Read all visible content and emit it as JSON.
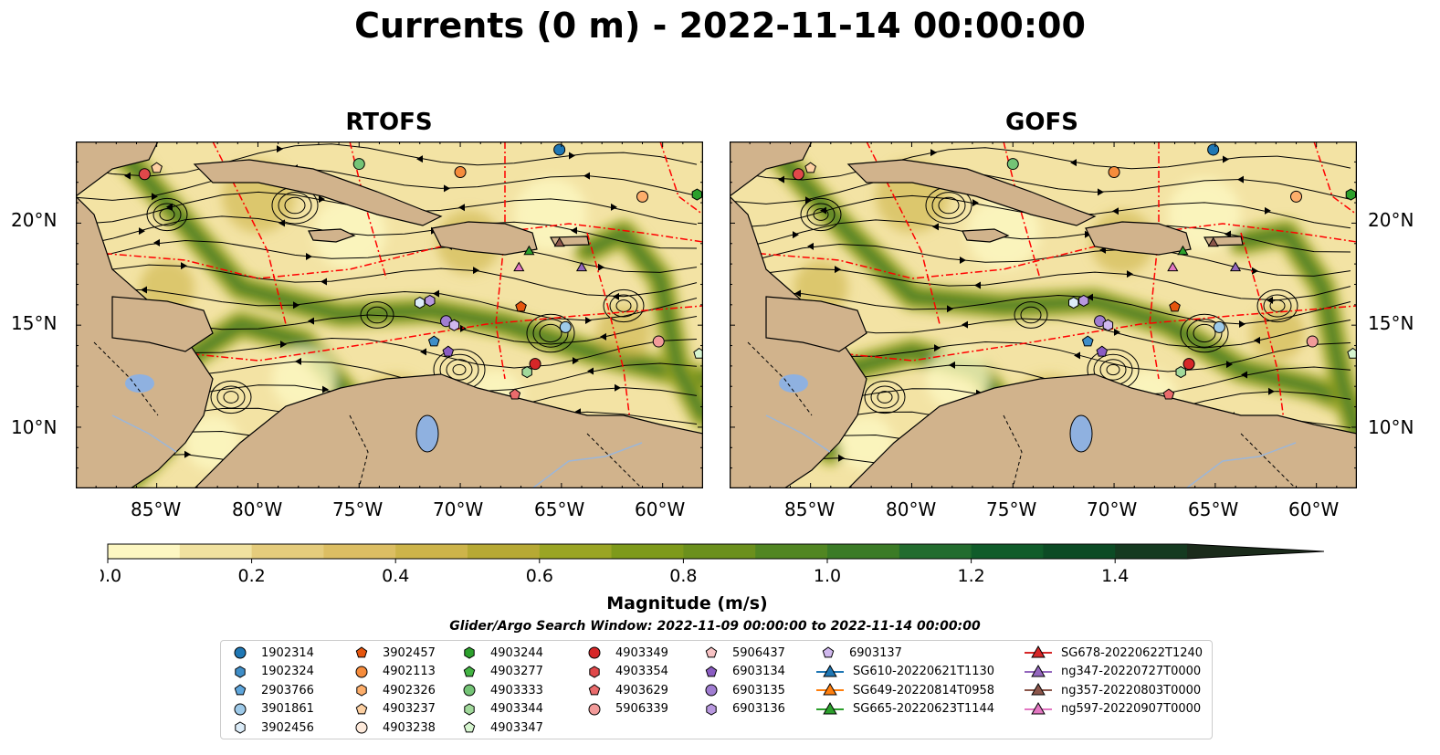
{
  "title": "Currents (0 m) - 2022-11-14 00:00:00",
  "panels": [
    {
      "name": "RTOFS"
    },
    {
      "name": "GOFS"
    }
  ],
  "lat_labels": [
    "20°N",
    "15°N",
    "10°N"
  ],
  "lon_labels": [
    "85°W",
    "80°W",
    "75°W",
    "70°W",
    "65°W",
    "60°W"
  ],
  "map_extent": {
    "lon": [
      -89,
      -58
    ],
    "lat": [
      7,
      24
    ]
  },
  "colorbar": {
    "label": "Magnitude (m/s)",
    "range": [
      0,
      1.5
    ],
    "extend": "max",
    "ticks": [
      "0.0",
      "0.2",
      "0.4",
      "0.6",
      "0.8",
      "1.0",
      "1.2",
      "1.4"
    ],
    "colors": [
      "#fdf7c2",
      "#f1e2a0",
      "#e5cc7c",
      "#dcbe63",
      "#cdb44a",
      "#b7a934",
      "#9aa524",
      "#7e9a1b",
      "#6b901d",
      "#518622",
      "#3b7b26",
      "#226c2e",
      "#105c2a",
      "#0c4b25",
      "#153a20",
      "#1b2b1b"
    ]
  },
  "search_window": "Glider/Argo Search Window: 2022-11-09 00:00:00 to 2022-11-14 00:00:00",
  "legend": [
    {
      "label": "1902314",
      "marker": "circle",
      "color": "#1f77b4"
    },
    {
      "label": "1902324",
      "marker": "hexagon",
      "color": "#3f8ec8"
    },
    {
      "label": "2903766",
      "marker": "pentagon",
      "color": "#5ea6dc"
    },
    {
      "label": "3901861",
      "marker": "circle",
      "color": "#9ecae9"
    },
    {
      "label": "3902456",
      "marker": "hexagon",
      "color": "#dcecf8"
    },
    {
      "label": "3902457",
      "marker": "pentagon",
      "color": "#e6550d"
    },
    {
      "label": "4902113",
      "marker": "circle",
      "color": "#f68c3c"
    },
    {
      "label": "4902326",
      "marker": "hexagon",
      "color": "#fdae6b"
    },
    {
      "label": "4903237",
      "marker": "pentagon",
      "color": "#fdd0a2"
    },
    {
      "label": "4903238",
      "marker": "circle",
      "color": "#feeadb"
    },
    {
      "label": "4903244",
      "marker": "hexagon",
      "color": "#2ca02c"
    },
    {
      "label": "4903277",
      "marker": "pentagon",
      "color": "#43b443"
    },
    {
      "label": "4903333",
      "marker": "circle",
      "color": "#74c476"
    },
    {
      "label": "4903344",
      "marker": "hexagon",
      "color": "#a1d99b"
    },
    {
      "label": "4903347",
      "marker": "pentagon",
      "color": "#d6f5cf"
    },
    {
      "label": "4903349",
      "marker": "circle",
      "color": "#d62728"
    },
    {
      "label": "4903354",
      "marker": "hexagon",
      "color": "#e0484a"
    },
    {
      "label": "4903629",
      "marker": "pentagon",
      "color": "#ea6b6c"
    },
    {
      "label": "5906339",
      "marker": "circle",
      "color": "#f29b9a"
    },
    {
      "label": "5906437",
      "marker": "pentagon",
      "color": "#f8c3c4"
    },
    {
      "label": "6903134",
      "marker": "pentagon",
      "color": "#8a5cc2"
    },
    {
      "label": "6903135",
      "marker": "circle",
      "color": "#a07dd1"
    },
    {
      "label": "6903136",
      "marker": "hexagon",
      "color": "#b898df"
    },
    {
      "label": "6903137",
      "marker": "pentagon",
      "color": "#d0b8ee"
    },
    {
      "label": "SG610-20220621T1130",
      "marker": "triangle-line",
      "color": "#1f77b4"
    },
    {
      "label": "SG649-20220814T0958",
      "marker": "triangle-line",
      "color": "#ff7f0e"
    },
    {
      "label": "SG665-20220623T1144",
      "marker": "triangle-line",
      "color": "#2ca02c"
    },
    {
      "label": "SG678-20220622T1240",
      "marker": "triangle-line",
      "color": "#d62728"
    },
    {
      "label": "ng347-20220727T0000",
      "marker": "triangle-line",
      "color": "#9467bd"
    },
    {
      "label": "ng357-20220803T0000",
      "marker": "triangle-line",
      "color": "#8c564b"
    },
    {
      "label": "ng597-20220907T0000",
      "marker": "triangle-line",
      "color": "#e377c2"
    }
  ],
  "land_color": "#d1b38c",
  "lake_color": "#8fb1e0"
}
